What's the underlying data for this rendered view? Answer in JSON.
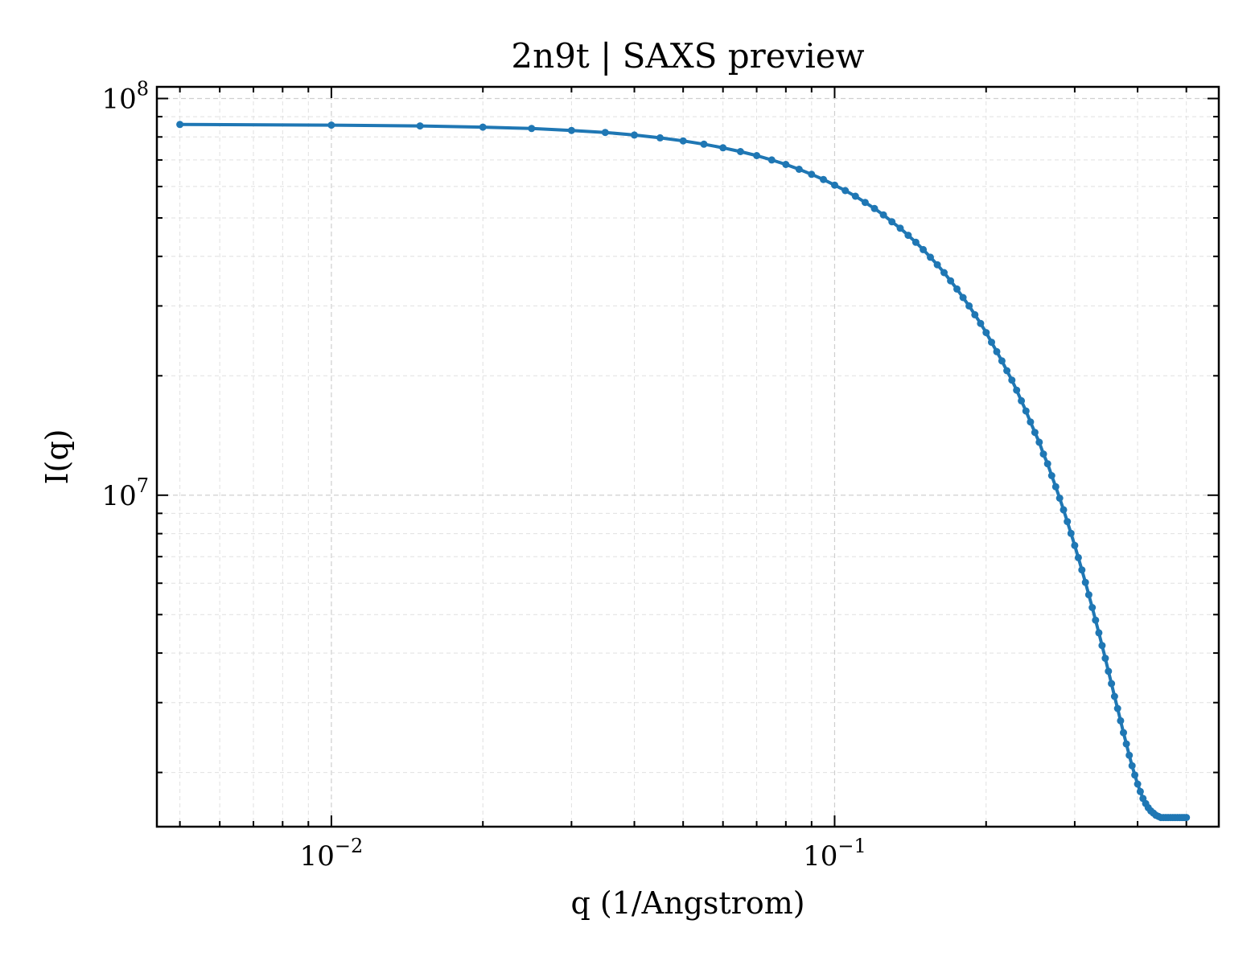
{
  "chart_data": {
    "type": "line",
    "title": "2n9t | SAXS preview",
    "xlabel": "q (1/Angstrom)",
    "ylabel": "I(q)",
    "xscale": "log",
    "yscale": "log",
    "xlim": [
      0.0045,
      0.58
    ],
    "ylim": [
      1460000,
      107000000
    ],
    "xticks": [
      {
        "value": 0.01,
        "base": "10",
        "exp": "−2"
      },
      {
        "value": 0.1,
        "base": "10",
        "exp": "−1"
      }
    ],
    "yticks": [
      {
        "value": 10000000,
        "base": "10",
        "exp": "7"
      },
      {
        "value": 100000000,
        "base": "10",
        "exp": "8"
      }
    ],
    "grid": true,
    "color": "#1f77b4",
    "series": [
      {
        "x": [
          0.005,
          0.01,
          0.015,
          0.02,
          0.025,
          0.03,
          0.035,
          0.04,
          0.045,
          0.05,
          0.055,
          0.06,
          0.065,
          0.07,
          0.075,
          0.08,
          0.085,
          0.09,
          0.095,
          0.1,
          0.105,
          0.11,
          0.115,
          0.12,
          0.125,
          0.13,
          0.135,
          0.14,
          0.145,
          0.15,
          0.155,
          0.16,
          0.165,
          0.17,
          0.175,
          0.18,
          0.185,
          0.19,
          0.195,
          0.2,
          0.205,
          0.21,
          0.215,
          0.22,
          0.225,
          0.23,
          0.235,
          0.24,
          0.245,
          0.25,
          0.255,
          0.26,
          0.265,
          0.27,
          0.275,
          0.28,
          0.285,
          0.29,
          0.295,
          0.3,
          0.305,
          0.31,
          0.315,
          0.32,
          0.325,
          0.33,
          0.335,
          0.34,
          0.345,
          0.35,
          0.355,
          0.36,
          0.365,
          0.37,
          0.375,
          0.38,
          0.385,
          0.39,
          0.395,
          0.4,
          0.405,
          0.41,
          0.415,
          0.42,
          0.425,
          0.43,
          0.435,
          0.44,
          0.445,
          0.45,
          0.455,
          0.46,
          0.465,
          0.47,
          0.475,
          0.48,
          0.485,
          0.49,
          0.495,
          0.5
        ],
        "y": [
          86000000,
          85700000,
          85300000,
          84700000,
          84000000,
          83100000,
          82100000,
          80900000,
          79600000,
          78200000,
          76700000,
          75100000,
          73500000,
          71800000,
          70000000,
          68200000,
          66300000,
          64400000,
          62500000,
          60500000,
          58600000,
          56700000,
          54700000,
          52800000,
          50900000,
          48900000,
          47100000,
          45200000,
          43400000,
          41600000,
          39800000,
          38100000,
          36400000,
          34700000,
          33100000,
          31500000,
          30000000,
          28500000,
          27100000,
          25700000,
          24300000,
          23000000,
          21800000,
          20600000,
          19500000,
          18400000,
          17300000,
          16300000,
          15300000,
          14400000,
          13600000,
          12700000,
          12000000,
          11200000,
          10500000,
          9830000,
          9190000,
          8580000,
          8010000,
          7470000,
          6960000,
          6480000,
          6030000,
          5610000,
          5210000,
          4840000,
          4500000,
          4180000,
          3880000,
          3600000,
          3350000,
          3110000,
          2900000,
          2700000,
          2520000,
          2360000,
          2210000,
          2080000,
          1970000,
          1870000,
          1790000,
          1720000,
          1670000,
          1630000,
          1600000,
          1580000,
          1560000,
          1550000,
          1540000,
          1540000,
          1540000,
          1540000,
          1540000,
          1540000,
          1540000,
          1540000,
          1540000,
          1540000,
          1540000,
          1540000
        ]
      }
    ]
  }
}
